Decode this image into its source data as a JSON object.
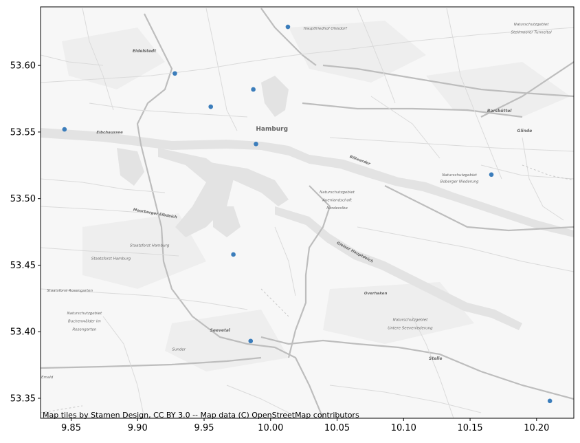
{
  "chart_data": {
    "type": "scatter",
    "title": "",
    "xlabel": "",
    "ylabel": "",
    "xlim": [
      9.827,
      10.228
    ],
    "ylim": [
      53.335,
      53.644
    ],
    "x_ticks": [
      9.85,
      9.9,
      9.95,
      10.0,
      10.05,
      10.1,
      10.15,
      10.2
    ],
    "x_tick_labels": [
      "9.85",
      "9.90",
      "9.95",
      "10.00",
      "10.05",
      "10.10",
      "10.15",
      "10.20"
    ],
    "y_ticks": [
      53.35,
      53.4,
      53.45,
      53.5,
      53.55,
      53.6
    ],
    "y_tick_labels": [
      "53.35",
      "53.40",
      "53.45",
      "53.50",
      "53.55",
      "53.60"
    ],
    "grid": false,
    "marker_color": "#3b7dbb",
    "points": [
      {
        "x": 10.013,
        "y": 53.629
      },
      {
        "x": 9.928,
        "y": 53.594
      },
      {
        "x": 9.987,
        "y": 53.582
      },
      {
        "x": 9.955,
        "y": 53.569
      },
      {
        "x": 9.845,
        "y": 53.552
      },
      {
        "x": 9.989,
        "y": 53.541
      },
      {
        "x": 10.166,
        "y": 53.518
      },
      {
        "x": 9.972,
        "y": 53.458
      },
      {
        "x": 9.985,
        "y": 53.393
      },
      {
        "x": 10.21,
        "y": 53.348
      }
    ]
  },
  "map": {
    "labels": [
      {
        "text": "Hamburg",
        "x": 10.001,
        "y": 53.551,
        "size": 9,
        "weight": "bold",
        "color": "#444"
      },
      {
        "text": "Eidelstedt",
        "x": 9.905,
        "y": 53.61,
        "size": 6,
        "weight": "bold",
        "color": "#555"
      },
      {
        "text": "Hauptfriedhof Ohlsdorf",
        "x": 10.041,
        "y": 53.627,
        "size": 5.5,
        "weight": "normal",
        "color": "#777"
      },
      {
        "text": "Naturschutzgebiet",
        "x": 10.196,
        "y": 53.63,
        "size": 5.5,
        "weight": "normal",
        "color": "#777"
      },
      {
        "text": "Stellmoorer Tunneltal",
        "x": 10.196,
        "y": 53.624,
        "size": 5.5,
        "weight": "normal",
        "color": "#777"
      },
      {
        "text": "Barsbüttel",
        "x": 10.172,
        "y": 53.565,
        "size": 6,
        "weight": "bold",
        "color": "#555"
      },
      {
        "text": "Glinde",
        "x": 10.191,
        "y": 53.55,
        "size": 6,
        "weight": "bold",
        "color": "#555"
      },
      {
        "text": "Elbchaussee",
        "x": 9.879,
        "y": 53.549,
        "size": 5.5,
        "weight": "bold",
        "color": "#666"
      },
      {
        "text": "Naturschutzgebiet",
        "x": 10.142,
        "y": 53.517,
        "size": 5.5,
        "weight": "normal",
        "color": "#777"
      },
      {
        "text": "Boberger Niederung",
        "x": 10.142,
        "y": 53.512,
        "size": 5.5,
        "weight": "normal",
        "color": "#777"
      },
      {
        "text": "Naturschutzgebiet",
        "x": 10.05,
        "y": 53.504,
        "size": 5.5,
        "weight": "normal",
        "color": "#777"
      },
      {
        "text": "Auenlandschaft",
        "x": 10.05,
        "y": 53.498,
        "size": 5.5,
        "weight": "normal",
        "color": "#777"
      },
      {
        "text": "Norderelbe",
        "x": 10.05,
        "y": 53.492,
        "size": 5.5,
        "weight": "normal",
        "color": "#777"
      },
      {
        "text": "Moorburger Elbdeich",
        "x": 9.913,
        "y": 53.488,
        "size": 5.5,
        "weight": "bold",
        "color": "#666",
        "rotate": 10
      },
      {
        "text": "Staatsforst Hamburg",
        "x": 9.909,
        "y": 53.464,
        "size": 5.5,
        "weight": "normal",
        "color": "#777"
      },
      {
        "text": "Staatsforst Hamburg",
        "x": 9.88,
        "y": 53.454,
        "size": 5.5,
        "weight": "normal",
        "color": "#777"
      },
      {
        "text": "Staatsforst Rosengarten",
        "x": 9.849,
        "y": 53.43,
        "size": 5.5,
        "weight": "normal",
        "color": "#777"
      },
      {
        "text": "Naturschutzgebiet",
        "x": 9.86,
        "y": 53.413,
        "size": 5.5,
        "weight": "normal",
        "color": "#777"
      },
      {
        "text": "Buchenwälder im",
        "x": 9.86,
        "y": 53.407,
        "size": 5.5,
        "weight": "normal",
        "color": "#777"
      },
      {
        "text": "Rosengarten",
        "x": 9.86,
        "y": 53.401,
        "size": 5.5,
        "weight": "normal",
        "color": "#777"
      },
      {
        "text": "Seevetal",
        "x": 9.962,
        "y": 53.4,
        "size": 6,
        "weight": "bold",
        "color": "#555"
      },
      {
        "text": "Sunder",
        "x": 9.931,
        "y": 53.386,
        "size": 5.5,
        "weight": "normal",
        "color": "#777"
      },
      {
        "text": "Naturschutzgebiet",
        "x": 10.105,
        "y": 53.408,
        "size": 5.5,
        "weight": "normal",
        "color": "#777"
      },
      {
        "text": "Untere Seeveniederung",
        "x": 10.105,
        "y": 53.402,
        "size": 5.5,
        "weight": "normal",
        "color": "#777"
      },
      {
        "text": "Stelle",
        "x": 10.124,
        "y": 53.379,
        "size": 6,
        "weight": "bold",
        "color": "#555"
      },
      {
        "text": "Overhaken",
        "x": 10.079,
        "y": 53.428,
        "size": 5.5,
        "weight": "bold",
        "color": "#666"
      },
      {
        "text": "Billwerder",
        "x": 10.067,
        "y": 53.528,
        "size": 5.5,
        "weight": "bold",
        "color": "#666",
        "rotate": 20
      },
      {
        "text": "Gleiser Hauptdeich",
        "x": 10.063,
        "y": 53.459,
        "size": 5.5,
        "weight": "bold",
        "color": "#666",
        "rotate": 28
      },
      {
        "text": "Emald",
        "x": 9.832,
        "y": 53.365,
        "size": 5.5,
        "weight": "normal",
        "color": "#777"
      }
    ],
    "attribution": "Map tiles by Stamen Design, CC BY 3.0 -- Map data (C) OpenStreetMap contributors"
  }
}
